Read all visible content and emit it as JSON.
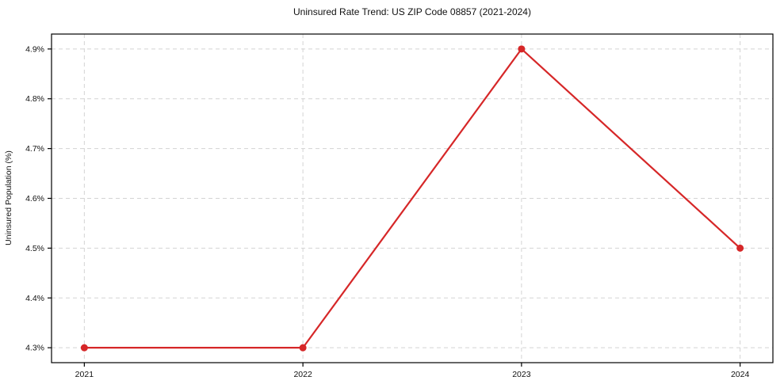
{
  "chart_data": {
    "type": "line",
    "title": "Uninsured Rate Trend: US ZIP Code 08857 (2021-2024)",
    "xlabel": "",
    "ylabel": "Uninsured Population (%)",
    "x": [
      2021,
      2022,
      2023,
      2024
    ],
    "values": [
      4.3,
      4.3,
      4.9,
      4.5
    ],
    "xtick_labels": [
      "2021",
      "2022",
      "2023",
      "2024"
    ],
    "ytick_values": [
      4.3,
      4.4,
      4.5,
      4.6,
      4.7,
      4.8,
      4.9
    ],
    "ytick_labels": [
      "4.3%",
      "4.4%",
      "4.5%",
      "4.6%",
      "4.7%",
      "4.8%",
      "4.9%"
    ],
    "xlim": [
      2020.85,
      2024.15
    ],
    "ylim": [
      4.27,
      4.93
    ],
    "grid": true,
    "legend_position": "none",
    "colors": {
      "line": "#d62728",
      "marker": "#d62728",
      "grid": "#d3d3d3",
      "spine": "#000000",
      "text": "#111111",
      "background": "#ffffff"
    }
  }
}
